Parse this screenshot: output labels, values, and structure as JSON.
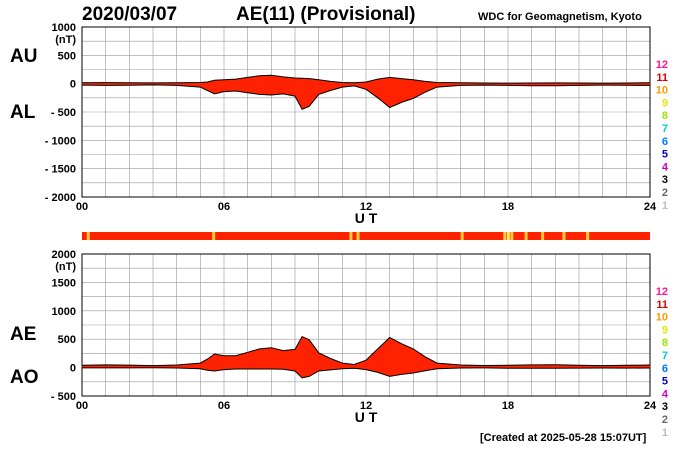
{
  "header": {
    "date": "2020/03/07",
    "title": "AE(11) (Provisional)",
    "organization": "WDC for Geomagnetism, Kyoto"
  },
  "footer": {
    "created": "[Created at 2025-05-28 15:07UT]"
  },
  "station_count_scale": {
    "labels": [
      "12",
      "11",
      "10",
      "9",
      "8",
      "7",
      "6",
      "5",
      "4",
      "3",
      "2",
      "1"
    ],
    "colors": [
      "#ff1493",
      "#e00000",
      "#ff9900",
      "#e6e600",
      "#99e600",
      "#00cccc",
      "#0077ff",
      "#0000cc",
      "#cc00cc",
      "#000000",
      "#666666",
      "#bbbbbb"
    ]
  },
  "station_bar": {
    "base_color": "#ff2200",
    "marks": [
      {
        "hour": 0.2,
        "color": "#ffcc33"
      },
      {
        "hour": 5.5,
        "color": "#ffcc33"
      },
      {
        "hour": 11.3,
        "color": "#ffcc33"
      },
      {
        "hour": 11.6,
        "color": "#ffcc33"
      },
      {
        "hour": 16.0,
        "color": "#ffcc33"
      },
      {
        "hour": 17.8,
        "color": "#ffcc33"
      },
      {
        "hour": 17.95,
        "color": "#ffee66"
      },
      {
        "hour": 18.1,
        "color": "#ffcc33"
      },
      {
        "hour": 18.7,
        "color": "#ffcc33"
      },
      {
        "hour": 19.4,
        "color": "#ffcc33"
      },
      {
        "hour": 20.3,
        "color": "#ffcc33"
      },
      {
        "hour": 21.3,
        "color": "#ffcc33"
      }
    ]
  },
  "chart_data": [
    {
      "type": "area",
      "panel": "AU/AL",
      "series_labels": [
        "AU",
        "AL"
      ],
      "ylabel": "(nT)",
      "xlabel": "U T",
      "xlim": [
        0,
        24
      ],
      "ylim": [
        -2000,
        1000
      ],
      "xticks": [
        "00",
        "06",
        "12",
        "18",
        "24"
      ],
      "yticks": [
        1000,
        500,
        0,
        -500,
        -1000,
        -1500,
        -2000
      ],
      "grid": true,
      "fill_color": "#ff2200",
      "x": [
        0,
        1,
        2,
        3,
        4,
        5,
        5.3,
        5.6,
        6,
        6.5,
        7,
        7.5,
        8,
        8.5,
        9,
        9.3,
        9.6,
        10,
        10.5,
        11,
        11.5,
        12,
        12.5,
        13,
        13.5,
        14,
        14.5,
        15,
        16,
        17,
        18,
        19,
        20,
        21,
        22,
        23,
        24
      ],
      "series": [
        {
          "name": "AU",
          "values": [
            15,
            18,
            16,
            14,
            15,
            20,
            30,
            60,
            70,
            80,
            110,
            140,
            150,
            120,
            100,
            95,
            90,
            70,
            40,
            20,
            15,
            30,
            80,
            110,
            90,
            70,
            40,
            20,
            15,
            12,
            10,
            12,
            14,
            12,
            10,
            12,
            15
          ]
        },
        {
          "name": "AL",
          "values": [
            -25,
            -30,
            -28,
            -22,
            -30,
            -60,
            -120,
            -180,
            -140,
            -130,
            -160,
            -190,
            -200,
            -180,
            -220,
            -450,
            -400,
            -190,
            -120,
            -60,
            -40,
            -100,
            -250,
            -420,
            -330,
            -260,
            -150,
            -60,
            -30,
            -25,
            -30,
            -35,
            -35,
            -30,
            -25,
            -28,
            -30
          ]
        }
      ]
    },
    {
      "type": "area",
      "panel": "AE/AO",
      "series_labels": [
        "AE",
        "AO"
      ],
      "ylabel": "(nT)",
      "xlabel": "U T",
      "xlim": [
        0,
        24
      ],
      "ylim": [
        -500,
        2000
      ],
      "xticks": [
        "00",
        "06",
        "12",
        "18",
        "24"
      ],
      "yticks": [
        2000,
        1500,
        1000,
        500,
        0,
        -500
      ],
      "grid": true,
      "fill_color": "#ff2200",
      "x": [
        0,
        1,
        2,
        3,
        4,
        5,
        5.3,
        5.6,
        6,
        6.5,
        7,
        7.5,
        8,
        8.5,
        9,
        9.3,
        9.6,
        10,
        10.5,
        11,
        11.5,
        12,
        12.5,
        13,
        13.5,
        14,
        14.5,
        15,
        16,
        17,
        18,
        19,
        20,
        21,
        22,
        23,
        24
      ],
      "series": [
        {
          "name": "AE",
          "values": [
            40,
            48,
            44,
            36,
            45,
            80,
            150,
            240,
            210,
            210,
            270,
            330,
            350,
            300,
            320,
            545,
            490,
            260,
            160,
            80,
            55,
            130,
            330,
            530,
            420,
            330,
            190,
            80,
            45,
            37,
            40,
            47,
            49,
            42,
            35,
            40,
            45
          ]
        },
        {
          "name": "AO",
          "values": [
            -5,
            -6,
            -6,
            -4,
            -7,
            -20,
            -45,
            -60,
            -35,
            -25,
            -25,
            -25,
            -25,
            -30,
            -60,
            -180,
            -155,
            -60,
            -40,
            -20,
            -12,
            -35,
            -85,
            -155,
            -120,
            -95,
            -55,
            -20,
            -7,
            -6,
            -10,
            -11,
            -10,
            -9,
            -7,
            -8,
            -7
          ]
        }
      ]
    }
  ]
}
